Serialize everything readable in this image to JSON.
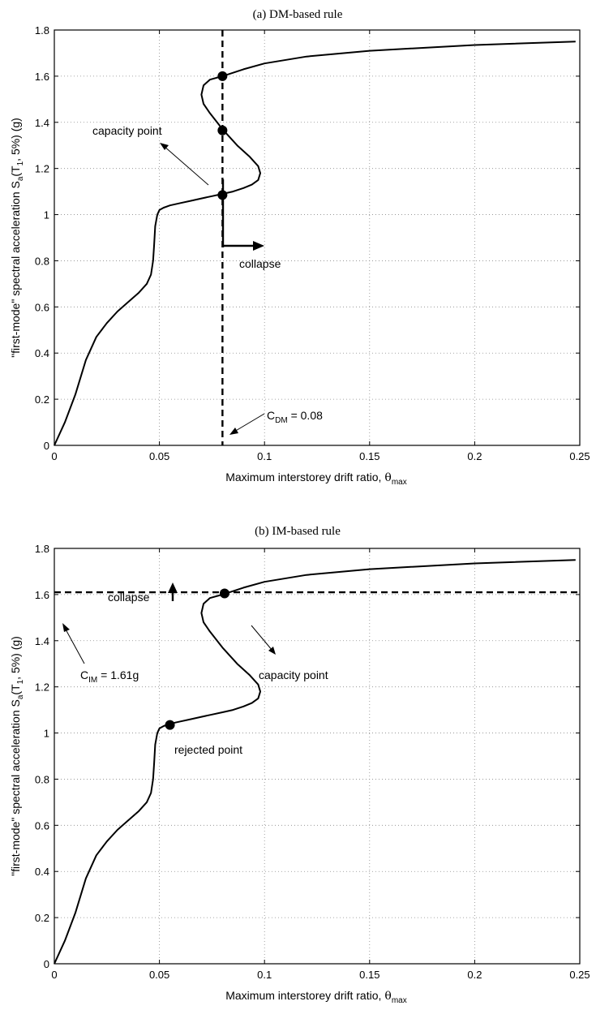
{
  "chart_data": [
    {
      "type": "line",
      "title": "(a) DM-based rule",
      "xlabel": "Maximum interstorey drift ratio,",
      "xlabel_symbol": "θ",
      "xlabel_sub": "max",
      "ylabel_main": "\"first-mode\" spectral acceleration  S",
      "ylabel_sub1": "a",
      "ylabel_mid": "(T",
      "ylabel_sub2": "1",
      "ylabel_end": ", 5%)  (g)",
      "xlim": [
        0,
        0.25
      ],
      "ylim": [
        0,
        1.8
      ],
      "xticks": [
        "0",
        "0.05",
        "0.1",
        "0.15",
        "0.2",
        "0.25"
      ],
      "yticks": [
        "0",
        "0.2",
        "0.4",
        "0.6",
        "0.8",
        "1",
        "1.2",
        "1.4",
        "1.6",
        "1.8"
      ],
      "grid": true,
      "series": [
        {
          "x": [
            0,
            0.005,
            0.01,
            0.015,
            0.02,
            0.025,
            0.03,
            0.035,
            0.04,
            0.044,
            0.046,
            0.047,
            0.0475,
            0.048,
            0.049,
            0.05,
            0.052,
            0.055,
            0.06,
            0.065,
            0.07,
            0.075,
            0.08,
            0.085,
            0.09,
            0.094,
            0.097,
            0.098,
            0.097,
            0.093,
            0.087,
            0.08,
            0.074,
            0.071,
            0.07,
            0.071,
            0.074,
            0.08,
            0.09,
            0.1,
            0.12,
            0.15,
            0.2,
            0.248
          ],
          "y": [
            0,
            0.1,
            0.22,
            0.37,
            0.47,
            0.53,
            0.58,
            0.62,
            0.66,
            0.7,
            0.74,
            0.8,
            0.87,
            0.95,
            1.0,
            1.02,
            1.03,
            1.04,
            1.05,
            1.06,
            1.07,
            1.08,
            1.09,
            1.1,
            1.115,
            1.13,
            1.15,
            1.18,
            1.21,
            1.25,
            1.3,
            1.37,
            1.44,
            1.48,
            1.52,
            1.56,
            1.585,
            1.6,
            1.63,
            1.655,
            1.685,
            1.71,
            1.735,
            1.75
          ]
        }
      ],
      "markers": [
        {
          "x": 0.08,
          "y": 1.6
        },
        {
          "x": 0.08,
          "y": 1.365
        },
        {
          "x": 0.08,
          "y": 1.085
        }
      ],
      "limit_line": {
        "orientation": "vertical",
        "value": 0.08
      },
      "annotations": {
        "capacity_point": "capacity point",
        "collapse": "collapse",
        "limit_main": "C",
        "limit_sub": "DM",
        "limit_value": " = 0.08"
      }
    },
    {
      "type": "line",
      "title": "(b) IM-based rule",
      "xlabel": "Maximum interstorey drift ratio,",
      "xlabel_symbol": "θ",
      "xlabel_sub": "max",
      "ylabel_main": "\"first-mode\" spectral acceleration  S",
      "ylabel_sub1": "a",
      "ylabel_mid": "(T",
      "ylabel_sub2": "1",
      "ylabel_end": ", 5%)  (g)",
      "xlim": [
        0,
        0.25
      ],
      "ylim": [
        0,
        1.8
      ],
      "xticks": [
        "0",
        "0.05",
        "0.1",
        "0.15",
        "0.2",
        "0.25"
      ],
      "yticks": [
        "0",
        "0.2",
        "0.4",
        "0.6",
        "0.8",
        "1",
        "1.2",
        "1.4",
        "1.6",
        "1.8"
      ],
      "grid": true,
      "series": [
        {
          "x": [
            0,
            0.005,
            0.01,
            0.015,
            0.02,
            0.025,
            0.03,
            0.035,
            0.04,
            0.044,
            0.046,
            0.047,
            0.0475,
            0.048,
            0.049,
            0.05,
            0.052,
            0.055,
            0.06,
            0.065,
            0.07,
            0.075,
            0.08,
            0.085,
            0.09,
            0.094,
            0.097,
            0.098,
            0.097,
            0.093,
            0.087,
            0.08,
            0.074,
            0.071,
            0.07,
            0.071,
            0.074,
            0.08,
            0.09,
            0.1,
            0.12,
            0.15,
            0.2,
            0.248
          ],
          "y": [
            0,
            0.1,
            0.22,
            0.37,
            0.47,
            0.53,
            0.58,
            0.62,
            0.66,
            0.7,
            0.74,
            0.8,
            0.87,
            0.95,
            1.0,
            1.02,
            1.03,
            1.04,
            1.05,
            1.06,
            1.07,
            1.08,
            1.09,
            1.1,
            1.115,
            1.13,
            1.15,
            1.18,
            1.21,
            1.25,
            1.3,
            1.37,
            1.44,
            1.48,
            1.52,
            1.56,
            1.585,
            1.6,
            1.63,
            1.655,
            1.685,
            1.71,
            1.735,
            1.75
          ]
        }
      ],
      "markers": [
        {
          "x": 0.081,
          "y": 1.605
        },
        {
          "x": 0.055,
          "y": 1.035
        }
      ],
      "limit_line": {
        "orientation": "horizontal",
        "value": 1.61
      },
      "annotations": {
        "collapse": "collapse",
        "capacity_point": "capacity point",
        "rejected_point": "rejected point",
        "limit_main": "C",
        "limit_sub": "IM",
        "limit_value": " = 1.61g"
      }
    }
  ]
}
